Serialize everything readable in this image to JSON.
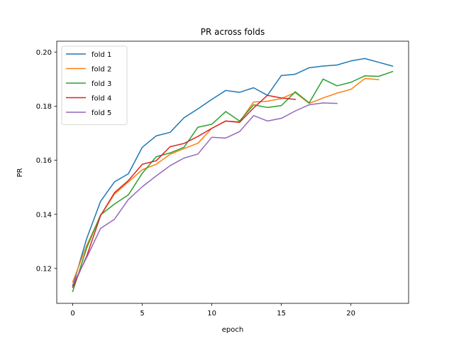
{
  "chart_data": {
    "type": "line",
    "title": "PR across folds",
    "xlabel": "epoch",
    "ylabel": "PR",
    "xlim": [
      -1.15,
      24.15
    ],
    "ylim": [
      0.1071,
      0.204
    ],
    "xticks": [
      0,
      5,
      10,
      15,
      20
    ],
    "yticks": [
      0.12,
      0.14,
      0.16,
      0.18,
      0.2
    ],
    "xtick_labels": [
      "0",
      "5",
      "10",
      "15",
      "20"
    ],
    "ytick_labels": [
      "0.12",
      "0.14",
      "0.16",
      "0.18",
      "0.20"
    ],
    "grid": false,
    "legend_position": "top-left",
    "series": [
      {
        "name": "fold 1",
        "color": "#1f77b4",
        "x": [
          0,
          1,
          2,
          3,
          4,
          5,
          6,
          7,
          8,
          9,
          10,
          11,
          12,
          13,
          14,
          15,
          16,
          17,
          18,
          19,
          20,
          21,
          22,
          23
        ],
        "values": [
          0.1135,
          0.131,
          0.1448,
          0.152,
          0.155,
          0.1648,
          0.169,
          0.1703,
          0.1757,
          0.179,
          0.1825,
          0.1858,
          0.1851,
          0.1868,
          0.184,
          0.1913,
          0.1918,
          0.1942,
          0.1948,
          0.1952,
          0.1967,
          0.1976,
          0.1962,
          0.1948
        ]
      },
      {
        "name": "fold 2",
        "color": "#ff7f0e",
        "x": [
          0,
          1,
          2,
          3,
          4,
          5,
          6,
          7,
          8,
          9,
          10,
          11,
          12,
          13,
          14,
          15,
          16,
          17,
          18,
          19,
          20,
          21,
          22
        ],
        "values": [
          0.115,
          0.1285,
          0.1395,
          0.1475,
          0.152,
          0.1565,
          0.1585,
          0.1622,
          0.1643,
          0.1663,
          0.1718,
          0.1745,
          0.1742,
          0.1815,
          0.1818,
          0.1828,
          0.185,
          0.181,
          0.183,
          0.1848,
          0.1862,
          0.1902,
          0.1898
        ]
      },
      {
        "name": "fold 3",
        "color": "#2ca02c",
        "x": [
          0,
          1,
          2,
          3,
          4,
          5,
          6,
          7,
          8,
          9,
          10,
          11,
          12,
          13,
          14,
          15,
          16,
          17,
          18,
          19,
          20,
          21,
          22,
          23
        ],
        "values": [
          0.1115,
          0.1275,
          0.1398,
          0.1438,
          0.1472,
          0.1552,
          0.1613,
          0.1627,
          0.1648,
          0.1722,
          0.1733,
          0.178,
          0.1745,
          0.1805,
          0.1795,
          0.1802,
          0.1853,
          0.1812,
          0.19,
          0.1875,
          0.1888,
          0.1912,
          0.191,
          0.1928
        ]
      },
      {
        "name": "fold 4",
        "color": "#d62728",
        "x": [
          0,
          1,
          2,
          3,
          4,
          5,
          6,
          7,
          8,
          9,
          10,
          11,
          12,
          13,
          14,
          15,
          16
        ],
        "values": [
          0.113,
          0.1245,
          0.1395,
          0.148,
          0.1525,
          0.1585,
          0.1598,
          0.165,
          0.1662,
          0.1688,
          0.1718,
          0.1745,
          0.174,
          0.1793,
          0.184,
          0.183,
          0.1825
        ]
      },
      {
        "name": "fold 5",
        "color": "#9467bd",
        "x": [
          0,
          1,
          2,
          3,
          4,
          5,
          6,
          7,
          8,
          9,
          10,
          11,
          12,
          13,
          14,
          15,
          16,
          17,
          18,
          19
        ],
        "values": [
          0.114,
          0.124,
          0.1348,
          0.1382,
          0.1455,
          0.1502,
          0.1542,
          0.158,
          0.1608,
          0.1623,
          0.1685,
          0.1682,
          0.1706,
          0.1765,
          0.1745,
          0.1755,
          0.1782,
          0.1805,
          0.1812,
          0.181
        ]
      }
    ]
  }
}
